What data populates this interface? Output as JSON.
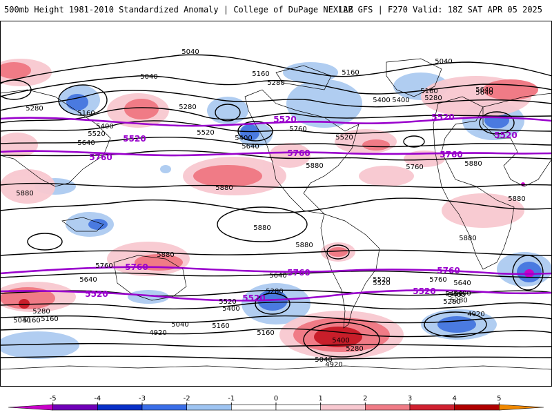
{
  "header": {
    "left_title": "500mb Height 1981-2010 Standardized Anomaly | College of DuPage NEXLAB",
    "right_title": "12Z GFS | F270 Valid: 18Z SAT APR 05 2025"
  },
  "colors": {
    "contour": "#000000",
    "highlight_contour": "#9900cc",
    "coast": "#000000"
  },
  "contour_labels": {
    "black": [
      "5040",
      "5040",
      "5160",
      "5280",
      "5040",
      "5160",
      "5280",
      "5400",
      "5520",
      "5640",
      "5280",
      "5160",
      "5400",
      "5640",
      "5520",
      "5760",
      "5880",
      "5400",
      "5520",
      "5640",
      "5160",
      "5280",
      "5400",
      "5640",
      "5880",
      "5880",
      "5880",
      "5880",
      "5880",
      "5880",
      "5760",
      "5880",
      "5880",
      "5640",
      "5640",
      "5760",
      "5520",
      "5400",
      "5280",
      "5160",
      "5040",
      "4920",
      "5040",
      "5160",
      "5280",
      "5400",
      "5520",
      "5400",
      "5160",
      "4920",
      "5040",
      "5160",
      "5280",
      "5400",
      "5280",
      "4920",
      "5640",
      "5760",
      "5520",
      "5400",
      "5280"
    ],
    "purple": [
      "5520",
      "5520",
      "5520",
      "5520",
      "5760",
      "5760",
      "5760",
      "5760",
      "5760",
      "5520",
      "5520",
      "5520"
    ]
  },
  "colorbar": {
    "ticks": [
      "-5",
      "-4",
      "-3",
      "-2",
      "-1",
      "0",
      "1",
      "2",
      "3",
      "4",
      "5"
    ],
    "bin_colors": [
      "#c800c8",
      "#7000b8",
      "#0830c8",
      "#3a6ee8",
      "#9ec4f2",
      "#ffffff",
      "#ffffff",
      "#f8c8d0",
      "#f07b86",
      "#d02030",
      "#b00000",
      "#f08800"
    ]
  }
}
